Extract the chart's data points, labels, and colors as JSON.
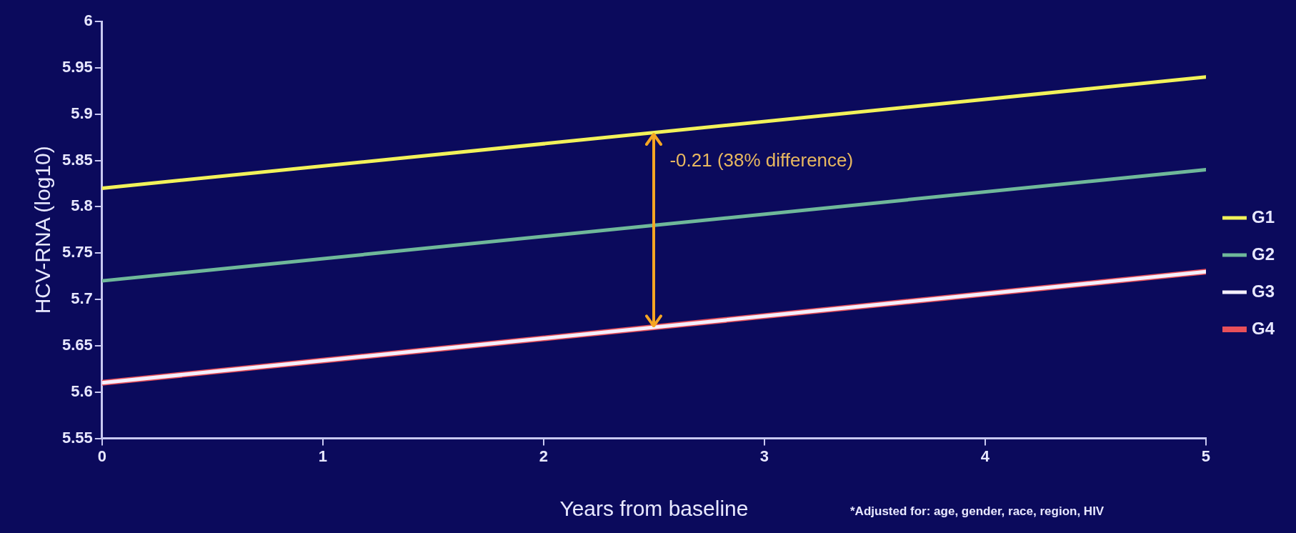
{
  "chart_data": {
    "type": "line",
    "xlabel": "Years from baseline",
    "ylabel": "HCV-RNA (log10)",
    "x": [
      0,
      5
    ],
    "series": [
      {
        "name": "G1",
        "color": "#f2f25a",
        "values": [
          5.82,
          5.94
        ]
      },
      {
        "name": "G2",
        "color": "#6fb89a",
        "values": [
          5.72,
          5.84
        ]
      },
      {
        "name": "G3",
        "color": "#f4f0ff",
        "values": [
          5.61,
          5.73
        ]
      },
      {
        "name": "G4",
        "color": "#e8505a",
        "values": [
          5.61,
          5.73
        ]
      }
    ],
    "xlim": [
      0,
      5
    ],
    "xticks": [
      0,
      1,
      2,
      3,
      4,
      5
    ],
    "ylim": [
      5.55,
      6
    ],
    "yticks": [
      5.55,
      5.6,
      5.65,
      5.7,
      5.75,
      5.8,
      5.85,
      5.9,
      5.95,
      6
    ],
    "grid": false,
    "legend": "right",
    "marker": "none",
    "line_style": "solid",
    "annotations": [
      {
        "text": "-0.21 (38% difference)",
        "x": 2.5,
        "y": 5.88
      },
      "*Adjusted for: age, gender, race, region, HIV"
    ]
  }
}
